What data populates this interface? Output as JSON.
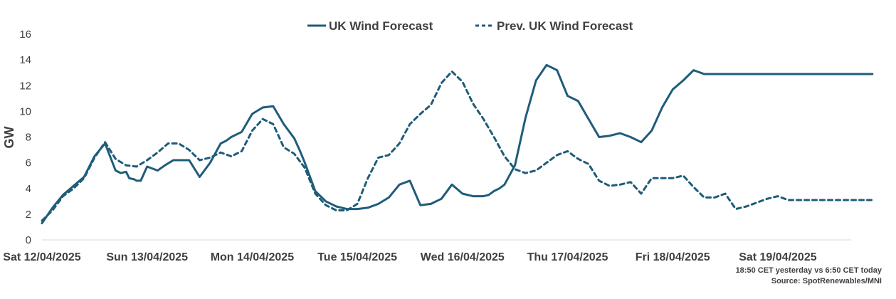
{
  "chart_data": {
    "type": "line",
    "title": "",
    "ylabel": "GW",
    "xlabel": "",
    "ylim": [
      0,
      16
    ],
    "yticks": [
      0,
      2,
      4,
      6,
      8,
      10,
      12,
      14,
      16
    ],
    "grid": false,
    "legend_position": "top-center",
    "x_range": [
      0,
      7.9
    ],
    "x_units": "days from Sat 12/04/2025 00:00",
    "categories": [
      "Sat 12/04/2025",
      "Sun 13/04/2025",
      "Mon 14/04/2025",
      "Tue 15/04/2025",
      "Wed 16/04/2025",
      "Thu 17/04/2025",
      "Fri 18/04/2025",
      "Sat 19/04/2025"
    ],
    "series": [
      {
        "name": "UK Wind Forecast",
        "style": "solid",
        "color": "#1f5c7a",
        "x": [
          0,
          0.1,
          0.2,
          0.3,
          0.4,
          0.5,
          0.6,
          0.7,
          0.75,
          0.8,
          0.83,
          0.88,
          0.9,
          0.94,
          1.0,
          1.1,
          1.17,
          1.25,
          1.3,
          1.4,
          1.5,
          1.6,
          1.7,
          1.75,
          1.8,
          1.9,
          2.0,
          2.1,
          2.2,
          2.3,
          2.4,
          2.45,
          2.5,
          2.6,
          2.7,
          2.8,
          2.9,
          3.0,
          3.1,
          3.2,
          3.3,
          3.4,
          3.5,
          3.6,
          3.7,
          3.8,
          3.9,
          4.0,
          4.1,
          4.2,
          4.25,
          4.3,
          4.35,
          4.4,
          4.5,
          4.6,
          4.7,
          4.8,
          4.9,
          5.0,
          5.1,
          5.2,
          5.3,
          5.4,
          5.5,
          5.6,
          5.7,
          5.8,
          5.9,
          6.0,
          6.1,
          6.2,
          6.3,
          6.4,
          6.5,
          6.6,
          6.7,
          6.8,
          6.9,
          7.0,
          7.1,
          7.2,
          7.3,
          7.4,
          7.5,
          7.6,
          7.7,
          7.8,
          7.9
        ],
        "values": [
          1.3,
          2.5,
          3.5,
          4.2,
          4.9,
          6.5,
          7.5,
          5.4,
          5.2,
          5.3,
          4.8,
          4.7,
          4.6,
          4.6,
          5.7,
          5.4,
          5.8,
          6.2,
          6.2,
          6.2,
          4.9,
          6.0,
          7.5,
          7.7,
          8.0,
          8.4,
          9.8,
          10.3,
          10.4,
          9.0,
          7.9,
          7.0,
          6.0,
          3.8,
          3.0,
          2.6,
          2.4,
          2.4,
          2.5,
          2.8,
          3.3,
          4.3,
          4.6,
          2.7,
          2.8,
          3.2,
          4.3,
          3.6,
          3.4,
          3.4,
          3.5,
          3.8,
          4.0,
          4.3,
          5.8,
          9.5,
          12.4,
          13.6,
          13.2,
          11.2,
          10.8,
          9.4,
          8.0,
          8.1,
          8.3,
          8.0,
          7.6,
          8.5,
          10.3,
          11.7,
          12.4,
          13.2,
          12.9,
          12.9,
          12.9,
          12.9,
          12.9,
          12.9,
          12.9,
          12.9,
          12.9,
          12.9,
          12.9,
          12.9,
          12.9,
          12.9,
          12.9,
          12.9,
          12.9
        ]
      },
      {
        "name": "Prev. UK Wind Forecast",
        "style": "dashed",
        "color": "#1f5c7a",
        "x": [
          0,
          0.1,
          0.2,
          0.3,
          0.4,
          0.5,
          0.6,
          0.7,
          0.8,
          0.9,
          1.0,
          1.1,
          1.2,
          1.3,
          1.4,
          1.5,
          1.6,
          1.7,
          1.8,
          1.9,
          2.0,
          2.1,
          2.2,
          2.3,
          2.4,
          2.5,
          2.6,
          2.7,
          2.8,
          2.9,
          3.0,
          3.1,
          3.2,
          3.3,
          3.4,
          3.5,
          3.6,
          3.7,
          3.8,
          3.9,
          4.0,
          4.1,
          4.2,
          4.3,
          4.4,
          4.5,
          4.6,
          4.7,
          4.8,
          4.9,
          5.0,
          5.1,
          5.2,
          5.3,
          5.4,
          5.5,
          5.6,
          5.7,
          5.8,
          5.9,
          6.0,
          6.1,
          6.2,
          6.3,
          6.4,
          6.5,
          6.6,
          6.7,
          6.8,
          6.9,
          7.0,
          7.1,
          7.2,
          7.3,
          7.4,
          7.5,
          7.6,
          7.7,
          7.8,
          7.9
        ],
        "values": [
          1.5,
          2.3,
          3.4,
          4.0,
          4.8,
          6.4,
          7.6,
          6.3,
          5.8,
          5.7,
          6.2,
          6.8,
          7.5,
          7.5,
          7.0,
          6.2,
          6.4,
          6.8,
          6.5,
          6.9,
          8.5,
          9.4,
          9.0,
          7.2,
          6.7,
          5.6,
          3.6,
          2.7,
          2.3,
          2.3,
          2.8,
          4.8,
          6.4,
          6.6,
          7.5,
          9.0,
          9.8,
          10.5,
          12.2,
          13.1,
          12.3,
          10.6,
          9.4,
          8.0,
          6.5,
          5.5,
          5.2,
          5.4,
          6.0,
          6.6,
          6.9,
          6.3,
          5.9,
          4.6,
          4.2,
          4.3,
          4.5,
          3.6,
          4.8,
          4.8,
          4.8,
          5.0,
          4.1,
          3.3,
          3.3,
          3.6,
          2.4,
          2.6,
          2.9,
          3.2,
          3.4,
          3.1,
          3.1,
          3.1,
          3.1,
          3.1,
          3.1,
          3.1,
          3.1,
          3.1
        ]
      }
    ]
  },
  "notes": {
    "line1": "18:50 CET yesterday vs  6:50 CET today",
    "line2": "Source: SpotRenewables/MNI"
  }
}
